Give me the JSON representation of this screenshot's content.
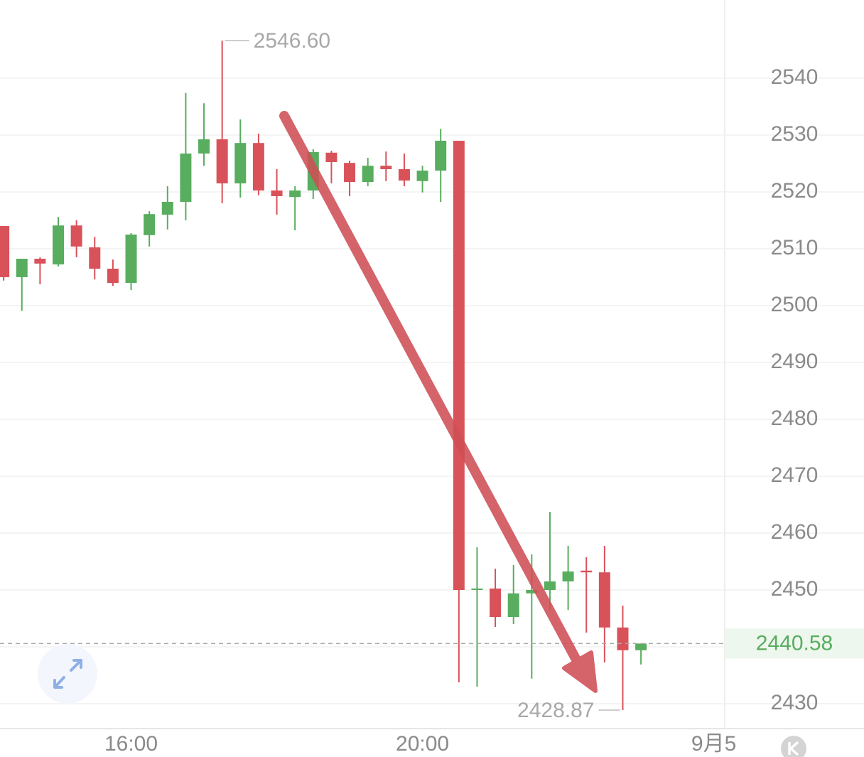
{
  "chart_data": {
    "type": "candlestick",
    "open": [
      2514,
      2505,
      2508.25,
      2507.25,
      2514.1,
      2510.25,
      2506.5,
      2504,
      2512.4,
      2516,
      2518.25,
      2526.75,
      2529.25,
      2521.5,
      2528.6,
      2520.25,
      2519.1,
      2520.25,
      2526.9,
      2525.1,
      2521.75,
      2524.6,
      2524,
      2521.9,
      2523.75,
      2529,
      2450,
      2450.25,
      2445.25,
      2449.4,
      2450,
      2451.5,
      2453.4,
      2453.1,
      2443.4,
      2439.4
    ],
    "high": [
      2514,
      2508.25,
      2508.5,
      2515.6,
      2515,
      2512.1,
      2508.1,
      2512.75,
      2516.6,
      2521,
      2537.4,
      2535.6,
      2546.6,
      2532.75,
      2530.25,
      2524,
      2521,
      2527.5,
      2527.25,
      2525.5,
      2526,
      2527.1,
      2526.75,
      2524.6,
      2531.1,
      2529,
      2457.5,
      2453.75,
      2454.4,
      2456.25,
      2463.75,
      2457.75,
      2455.75,
      2457.75,
      2447.25,
      2440.58
    ],
    "low": [
      2504.4,
      2499.1,
      2503.75,
      2506.9,
      2508.5,
      2504.6,
      2503.5,
      2502.75,
      2510.4,
      2513.4,
      2515,
      2524.6,
      2518,
      2519,
      2519.4,
      2516,
      2513.25,
      2518.75,
      2521.5,
      2519.25,
      2521,
      2521.9,
      2521,
      2519.9,
      2518.25,
      2433.75,
      2433,
      2443.5,
      2444,
      2434.4,
      2446.5,
      2446.5,
      2442.5,
      2437.25,
      2428.87,
      2436.9
    ],
    "close": [
      2505,
      2508.25,
      2507.4,
      2514.1,
      2510.4,
      2506.5,
      2504,
      2512.5,
      2516.1,
      2518.25,
      2526.75,
      2529.25,
      2521.5,
      2528.6,
      2520.25,
      2519.25,
      2520.25,
      2527,
      2525.25,
      2521.75,
      2524.6,
      2524,
      2522,
      2523.75,
      2529,
      2450,
      2450.25,
      2445.25,
      2449.4,
      2450,
      2451.5,
      2453.25,
      2453.1,
      2443.4,
      2439.4,
      2440.58
    ],
    "up_color": "#58ad5f",
    "down_color": "#d9525a",
    "xlim": [
      -0.2,
      39.6
    ],
    "xticks": [
      {
        "value": 7,
        "label": "16:00"
      },
      {
        "value": 23,
        "label": "20:00"
      },
      {
        "value": 39,
        "label": "9月5"
      }
    ],
    "ylim": [
      2425.625,
      2553.75
    ],
    "yticks": [
      2430,
      2440,
      2450,
      2460,
      2470,
      2480,
      2490,
      2500,
      2510,
      2520,
      2530,
      2540
    ],
    "grid": true,
    "max_annotation": {
      "index": 12,
      "value": 2546.6,
      "label": "2546.60"
    },
    "min_annotation": {
      "index": 34,
      "value": 2428.87,
      "label": "2428.87"
    },
    "last_price": {
      "value": 2440.58,
      "label": "2440.58"
    }
  }
}
